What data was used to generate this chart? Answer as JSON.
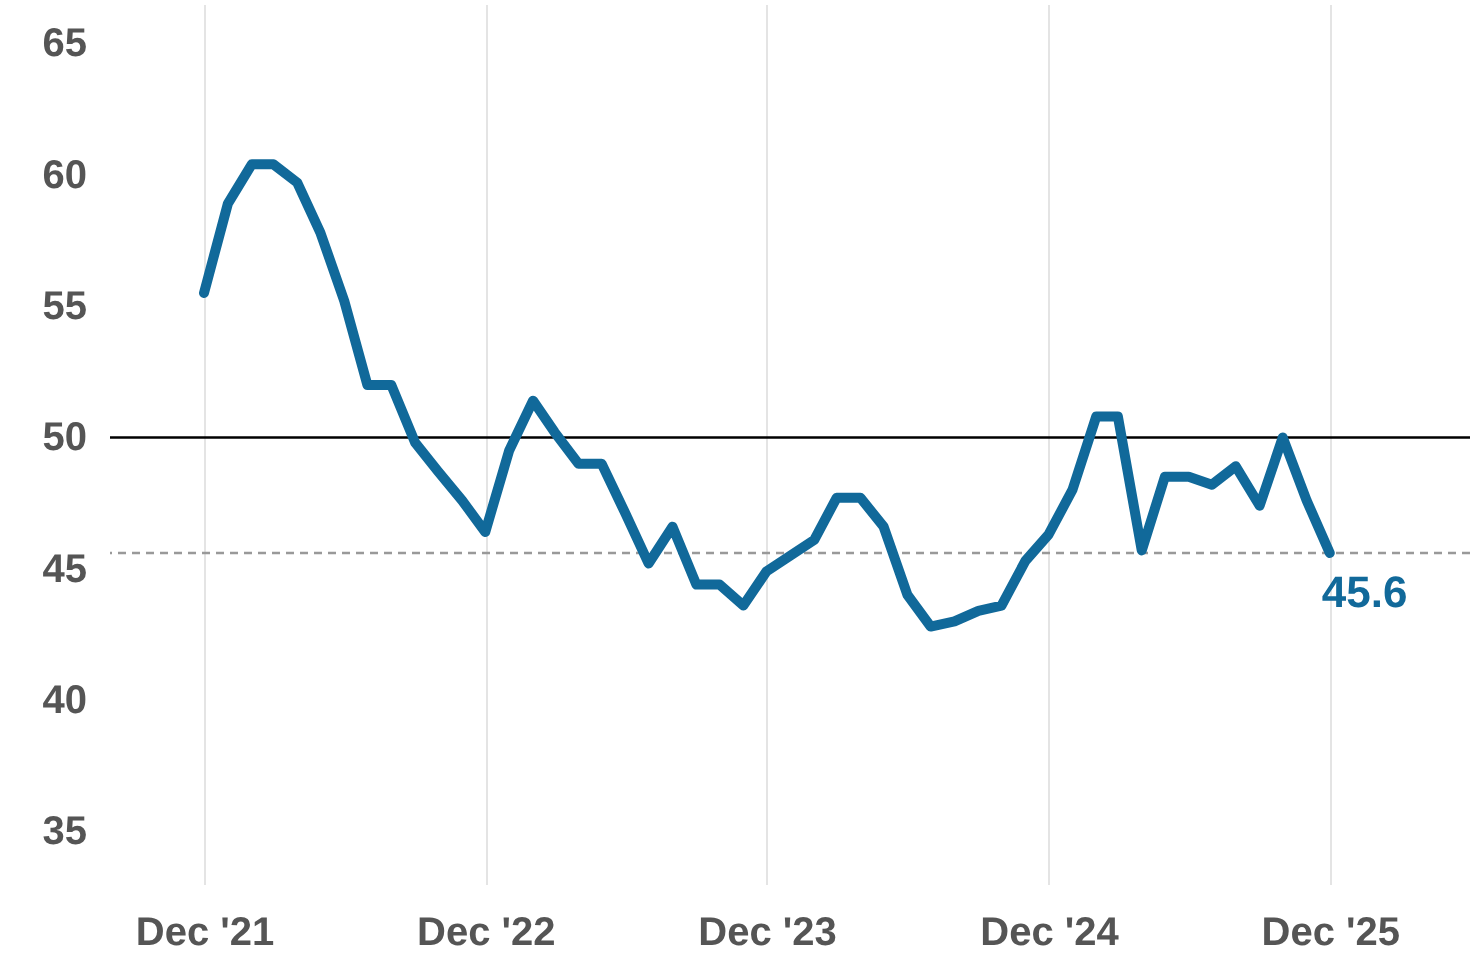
{
  "chart_data": {
    "type": "line",
    "x": [
      "2021-12",
      "2022-01",
      "2022-02",
      "2022-03",
      "2022-04",
      "2022-05",
      "2022-06",
      "2022-07",
      "2022-08",
      "2022-09",
      "2022-10",
      "2022-11",
      "2022-12",
      "2023-01",
      "2023-02",
      "2023-03",
      "2023-04",
      "2023-05",
      "2023-06",
      "2023-07",
      "2023-08",
      "2023-09",
      "2023-10",
      "2023-11",
      "2023-12",
      "2024-01",
      "2024-02",
      "2024-03",
      "2024-04",
      "2024-05",
      "2024-06",
      "2024-07",
      "2024-08",
      "2024-09",
      "2024-10",
      "2024-11",
      "2024-12",
      "2025-01",
      "2025-02",
      "2025-03",
      "2025-04",
      "2025-05",
      "2025-06",
      "2025-07",
      "2025-08",
      "2025-09",
      "2025-10",
      "2025-11",
      "2025-12"
    ],
    "series": [
      {
        "color": "#11699a",
        "values": [
          55.5,
          58.9,
          60.4,
          60.4,
          59.7,
          57.8,
          55.2,
          52.0,
          52.0,
          49.8,
          48.7,
          47.6,
          46.4,
          49.5,
          51.4,
          50.2,
          49.0,
          49.0,
          47.1,
          45.2,
          46.6,
          44.4,
          44.4,
          43.6,
          44.9,
          45.5,
          46.1,
          47.7,
          47.7,
          46.6,
          44.0,
          42.8,
          43.0,
          43.4,
          43.6,
          45.3,
          46.3,
          48.0,
          50.8,
          50.8,
          45.7,
          48.5,
          48.5,
          48.2,
          48.9,
          47.4,
          50.0,
          47.6,
          45.6
        ]
      }
    ],
    "xlim": [
      "2021-08",
      "2026-06"
    ],
    "xticks": [
      {
        "value": "2021-12",
        "label": "Dec '21"
      },
      {
        "value": "2022-12",
        "label": "Dec '22"
      },
      {
        "value": "2023-12",
        "label": "Dec '23"
      },
      {
        "value": "2024-12",
        "label": "Dec '24"
      },
      {
        "value": "2025-12",
        "label": "Dec '25"
      }
    ],
    "ylim": [
      33,
      66.5
    ],
    "yticks": [
      35,
      40,
      45,
      50,
      55,
      60,
      65
    ],
    "grid": "x",
    "ref_lines": [
      {
        "axis": "y",
        "value": 50,
        "color": "#000000",
        "line_style": "solid"
      },
      {
        "axis": "y",
        "value": 45.6,
        "color": "#999999",
        "line_style": "dashed"
      }
    ],
    "annotations": [
      {
        "text": "45.6",
        "x": "2025-12",
        "y": 45.6
      }
    ]
  }
}
